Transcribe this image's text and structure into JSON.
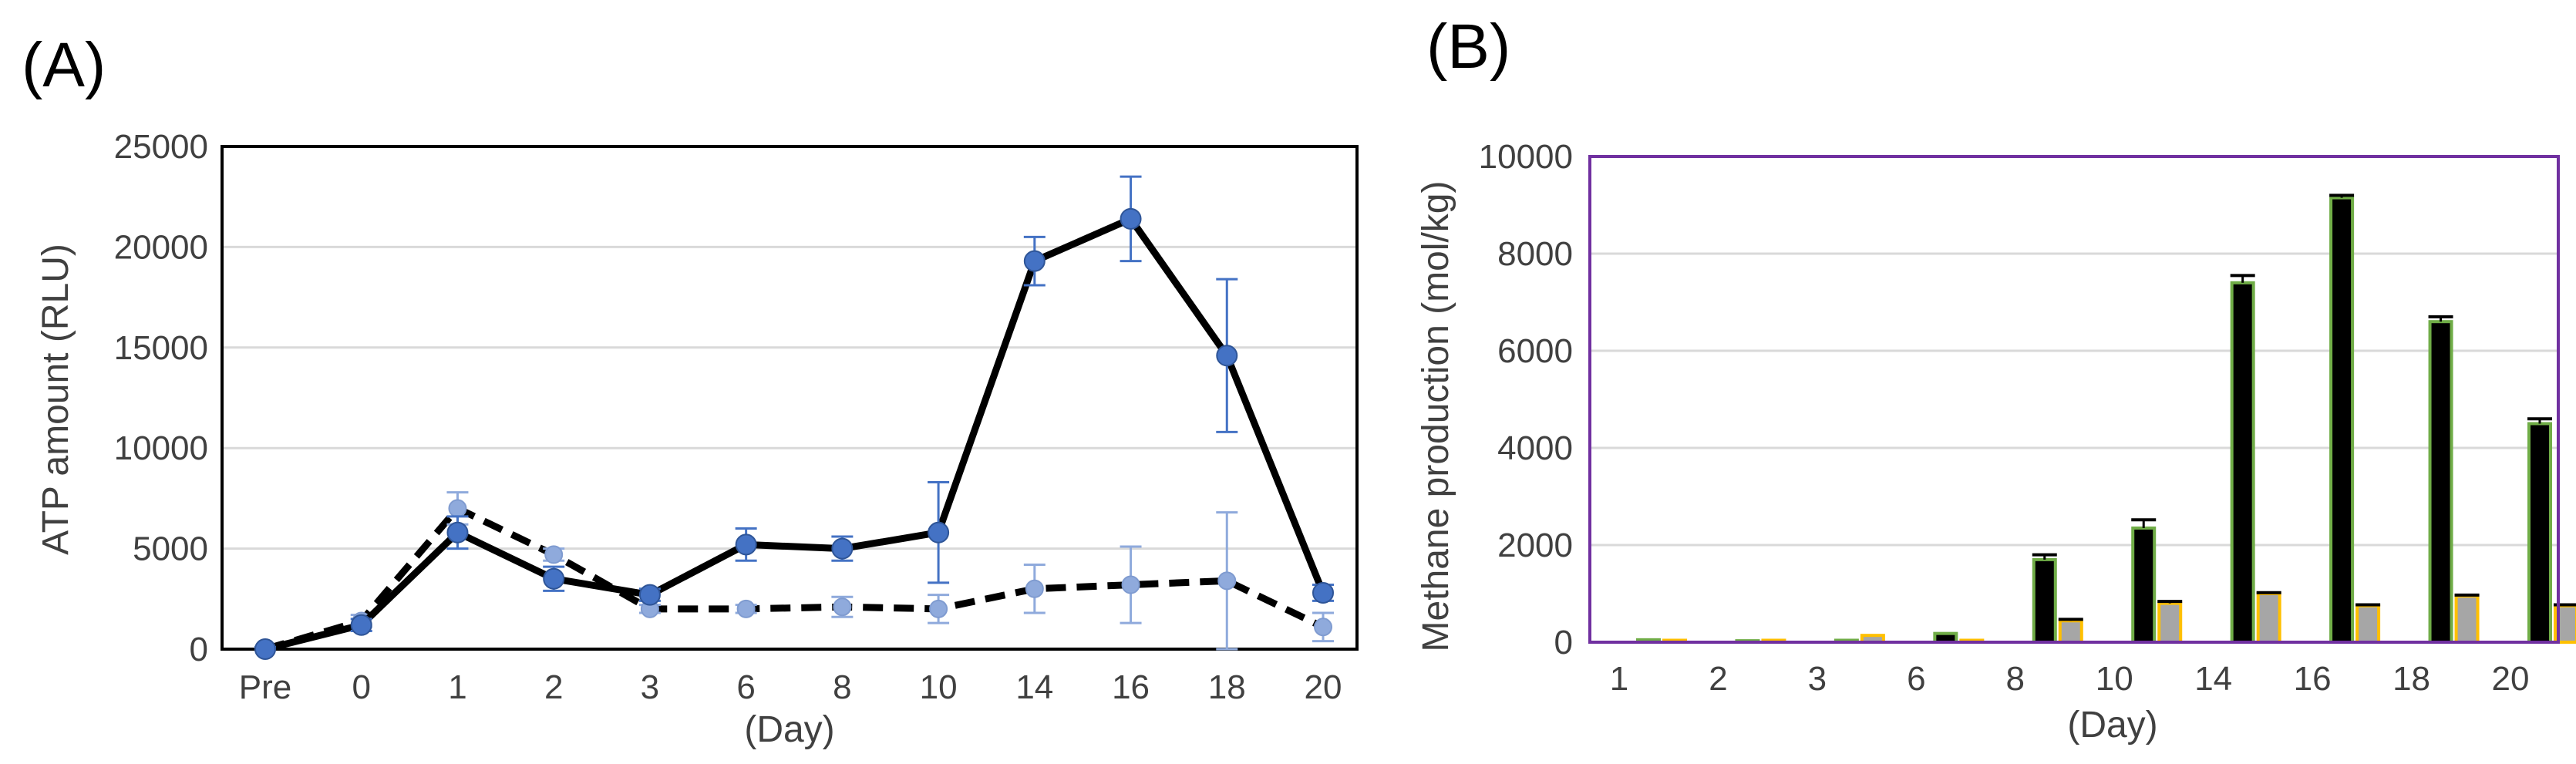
{
  "chart_data": [
    {
      "panel_label": "(A)",
      "type": "line",
      "ylabel": "ATP amount (RLU)",
      "xlabel": "(Day)",
      "categories": [
        "Pre",
        "0",
        "1",
        "2",
        "3",
        "6",
        "8",
        "10",
        "14",
        "16",
        "18",
        "20"
      ],
      "ylim": [
        0,
        25000
      ],
      "yticks": [
        0,
        5000,
        10000,
        15000,
        20000,
        25000
      ],
      "grid": true,
      "series": [
        {
          "style": "solid",
          "line_color": "#000000",
          "marker_color": "#4472C4",
          "values": [
            0,
            1200,
            5800,
            3500,
            2700,
            5200,
            5000,
            5800,
            19300,
            21400,
            14600,
            2800
          ],
          "errors": [
            100,
            300,
            800,
            600,
            300,
            800,
            600,
            2500,
            1200,
            2100,
            3800,
            400
          ]
        },
        {
          "style": "dashed",
          "line_color": "#000000",
          "marker_color": "#8FAADC",
          "values": [
            0,
            1400,
            7000,
            4700,
            2000,
            2000,
            2100,
            2000,
            3000,
            3200,
            3400,
            1100
          ],
          "errors": [
            100,
            300,
            800,
            300,
            200,
            200,
            500,
            700,
            1200,
            1900,
            3400,
            700
          ]
        }
      ]
    },
    {
      "panel_label": "(B)",
      "type": "bar",
      "ylabel": "Methane production (mol/kg)",
      "xlabel": "(Day)",
      "categories": [
        "1",
        "2",
        "3",
        "6",
        "8",
        "10",
        "14",
        "16",
        "18",
        "20"
      ],
      "ylim": [
        0,
        10000
      ],
      "yticks": [
        0,
        2000,
        4000,
        6000,
        8000,
        10000
      ],
      "grid": true,
      "plot_border_color": "#7030A0",
      "series": [
        {
          "fill": "#000000",
          "outline": "#70AD47",
          "values": [
            50,
            30,
            40,
            180,
            1700,
            2350,
            7400,
            9150,
            6600,
            4500
          ],
          "errors": [
            0,
            0,
            0,
            0,
            100,
            170,
            150,
            50,
            100,
            100
          ]
        },
        {
          "fill": "#A6A6A6",
          "outline": "#FFC000",
          "values": [
            40,
            40,
            140,
            40,
            440,
            800,
            1000,
            750,
            950,
            750
          ],
          "errors": [
            0,
            0,
            0,
            0,
            30,
            40,
            20,
            20,
            20,
            20
          ]
        }
      ]
    }
  ]
}
